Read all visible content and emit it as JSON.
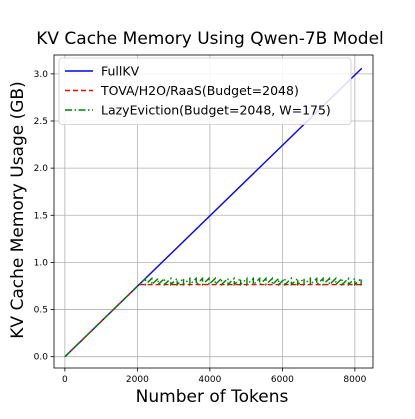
{
  "chart_data": {
    "type": "line",
    "title": "KV Cache Memory Using Qwen-7B Model",
    "xlabel": "Number of Tokens",
    "ylabel": "KV Cache Memory Usage (GB)",
    "xlim": [
      -300,
      8500
    ],
    "ylim": [
      -0.12,
      3.2
    ],
    "xticks": [
      0,
      2000,
      4000,
      6000,
      8000
    ],
    "yticks": [
      0.0,
      0.5,
      1.0,
      1.5,
      2.0,
      2.5,
      3.0
    ],
    "xtick_labels": [
      "0",
      "2000",
      "4000",
      "6000",
      "8000"
    ],
    "ytick_labels": [
      "0.0",
      "0.5",
      "1.0",
      "1.5",
      "2.0",
      "2.5",
      "3.0"
    ],
    "grid": true,
    "legend_position": "upper-left",
    "series": [
      {
        "name": "FullKV",
        "color": "#0000ff",
        "style": "solid",
        "x": [
          0,
          8192
        ],
        "y": [
          0.0,
          3.06
        ]
      },
      {
        "name": "TOVA/H2O/RaaS(Budget=2048)",
        "color": "#ff0000",
        "style": "dashed",
        "x": [
          0,
          2048,
          8192
        ],
        "y": [
          0.0,
          0.765,
          0.765
        ]
      },
      {
        "name": "LazyEviction(Budget=2048, W=175)",
        "color": "#008000",
        "style": "dashdot",
        "pattern": "sawtooth",
        "budget": 2048,
        "window": 175,
        "x_end": 8192,
        "y_low": 0.765,
        "y_high": 0.83
      }
    ]
  }
}
